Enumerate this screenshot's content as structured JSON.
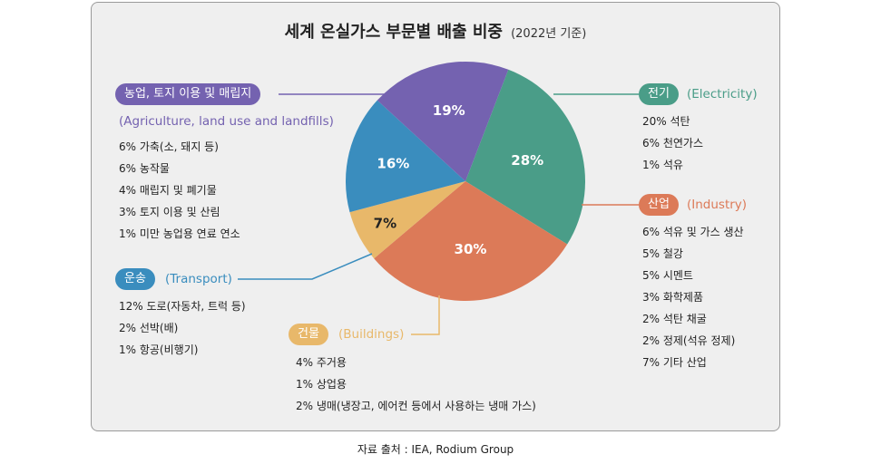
{
  "title": "세계 온실가스 부문별 배출 비중",
  "subtitle": "(2022년 기준)",
  "source": "자료 출처 : IEA, Rodium Group",
  "chart_data": {
    "type": "pie",
    "title": "세계 온실가스 부문별 배출 비중",
    "start_angle_deg": 21,
    "slices": [
      {
        "key": "electricity",
        "label": "28%",
        "value": 28,
        "color": "#4a9d88"
      },
      {
        "key": "industry",
        "label": "30%",
        "value": 30,
        "color": "#dc7a58"
      },
      {
        "key": "buildings",
        "label": "7%",
        "value": 7,
        "color": "#e8b86a"
      },
      {
        "key": "transport",
        "label": "16%",
        "value": 16,
        "color": "#3a8dbe"
      },
      {
        "key": "agriculture",
        "label": "19%",
        "value": 19,
        "color": "#7462b0"
      }
    ]
  },
  "sectors": {
    "electricity": {
      "name": "전기",
      "en": "(Electricity)",
      "color": "#4a9d88",
      "items": [
        "20% 석탄",
        "6% 천연가스",
        "1% 석유"
      ]
    },
    "industry": {
      "name": "산업",
      "en": "(Industry)",
      "color": "#dc7a58",
      "items": [
        "6% 석유 및 가스 생산",
        "5% 철강",
        "5% 시멘트",
        "3% 화학제품",
        "2% 석탄 채굴",
        "2% 정제(석유 정제)",
        "7% 기타 산업"
      ]
    },
    "buildings": {
      "name": "건물",
      "en": "(Buildings)",
      "color": "#e8b86a",
      "items": [
        "4% 주거용",
        "1% 상업용",
        "2% 냉매(냉장고, 에어컨 등에서 사용하는 냉매 가스)"
      ]
    },
    "transport": {
      "name": "운송",
      "en": "(Transport)",
      "color": "#3a8dbe",
      "items": [
        "12% 도로(자동차, 트럭 등)",
        "2% 선박(배)",
        "1% 항공(비행기)"
      ]
    },
    "agriculture": {
      "name": "농업, 토지 이용 및 매립지",
      "en": "(Agriculture, land use and landfills)",
      "color": "#7462b0",
      "items": [
        "6% 가축(소, 돼지 등)",
        "6% 농작물",
        "4% 매립지 및 폐기물",
        "3% 토지 이용 및 산림",
        "1% 미만 농업용 연료 연소"
      ]
    }
  }
}
